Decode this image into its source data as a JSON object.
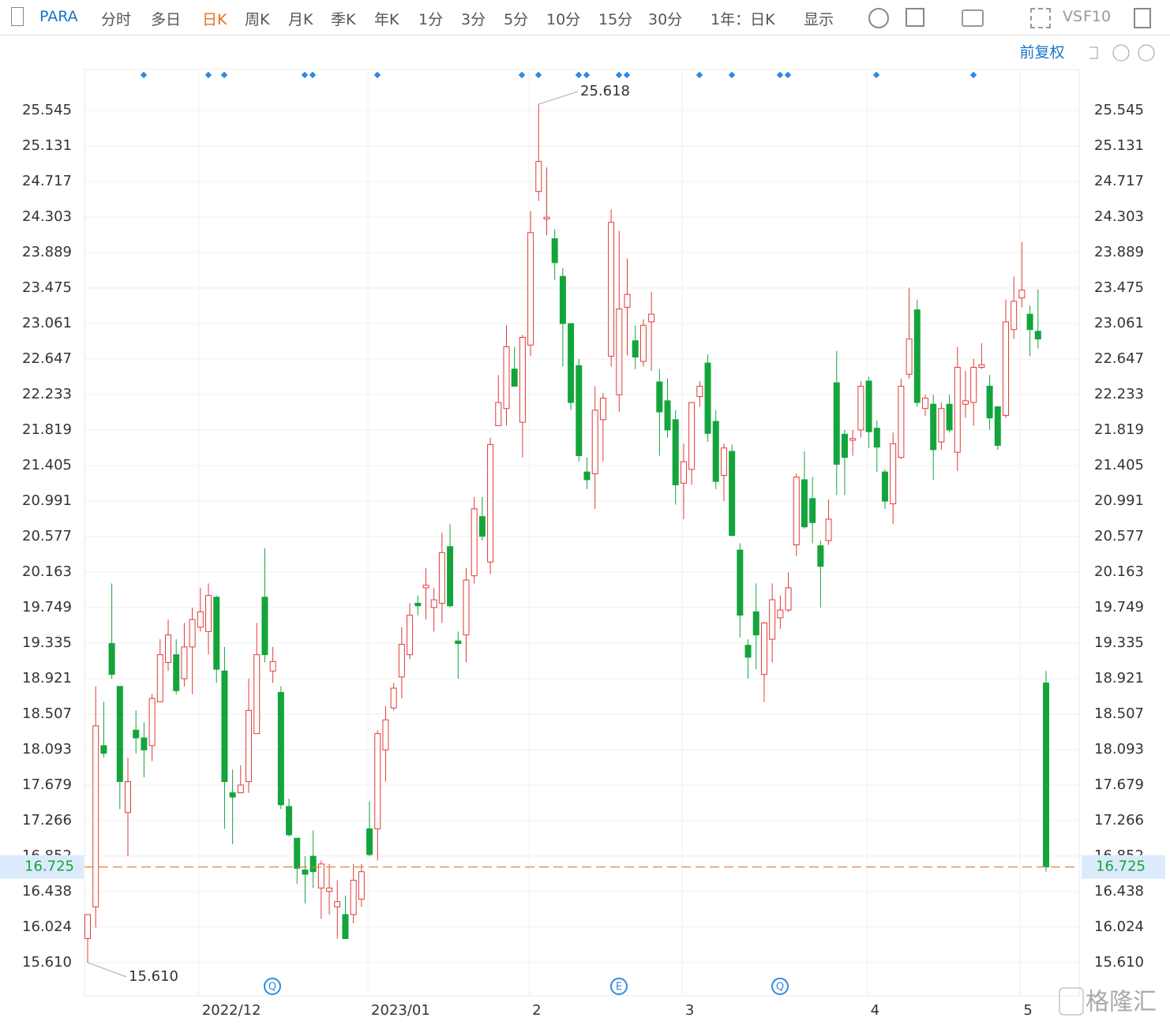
{
  "toolbar": {
    "symbol": "PARA",
    "periods": [
      "分时",
      "多日",
      "日K",
      "周K",
      "月K",
      "季K",
      "年K",
      "1分",
      "3分",
      "5分",
      "10分",
      "15分",
      "30分"
    ],
    "range": "1年：日K",
    "display": "显示",
    "vs": "VS",
    "f10": "F10",
    "adjust": "前复权"
  },
  "watermark": "格隆汇",
  "event_icons": [
    "Q",
    "E",
    "Q"
  ],
  "chart_data": {
    "type": "candlestick",
    "up_color": "#e23b35",
    "down_color": "#13a53c",
    "grid": true,
    "categories": [
      null,
      null,
      null,
      null,
      null,
      null,
      null,
      null,
      null,
      null,
      null,
      null,
      null,
      null,
      "2022/12",
      null,
      null,
      null,
      null,
      null,
      null,
      null,
      null,
      null,
      null,
      null,
      null,
      null,
      null,
      null,
      null,
      null,
      null,
      null,
      null,
      "2023/01",
      null,
      null,
      null,
      null,
      null,
      null,
      null,
      null,
      null,
      null,
      null,
      null,
      null,
      null,
      null,
      null,
      null,
      null,
      null,
      "2",
      null,
      null,
      null,
      null,
      null,
      null,
      null,
      null,
      null,
      null,
      null,
      null,
      null,
      null,
      null,
      null,
      null,
      null,
      "3",
      null,
      null,
      null,
      null,
      null,
      null,
      null,
      null,
      null,
      null,
      null,
      null,
      null,
      null,
      null,
      null,
      null,
      null,
      null,
      null,
      null,
      null,
      "4",
      null,
      null,
      null,
      null,
      null,
      null,
      null,
      null,
      null,
      null,
      null,
      null,
      null,
      null,
      null,
      null,
      null,
      null,
      "5",
      null,
      null,
      null
    ],
    "open": [
      15.89,
      16.26,
      18.14,
      19.33,
      18.83,
      17.36,
      18.32,
      18.23,
      18.14,
      18.65,
      19.11,
      19.2,
      18.92,
      19.29,
      19.52,
      19.47,
      19.87,
      19.01,
      17.59,
      17.59,
      17.72,
      18.28,
      19.87,
      19.01,
      18.76,
      17.43,
      17.06,
      16.69,
      16.85,
      16.48,
      16.44,
      16.26,
      16.17,
      16.17,
      16.35,
      17.17,
      17.17,
      18.09,
      18.58,
      18.94,
      19.2,
      19.8,
      19.98,
      19.75,
      19.8,
      20.46,
      19.36,
      19.43,
      20.12,
      20.81,
      20.28,
      21.87,
      22.07,
      22.53,
      21.91,
      22.81,
      24.6,
      24.28,
      24.05,
      23.61,
      23.06,
      22.57,
      21.33,
      21.31,
      21.94,
      22.68,
      22.23,
      23.25,
      22.86,
      22.62,
      23.08,
      22.38,
      22.16,
      21.94,
      21.2,
      21.36,
      22.21,
      22.6,
      21.92,
      21.29,
      21.57,
      20.42,
      19.31,
      19.7,
      18.97,
      19.38,
      19.63,
      19.72,
      20.48,
      21.24,
      21.02,
      20.47,
      20.53,
      22.37,
      21.77,
      21.7,
      21.82,
      22.39,
      21.84,
      21.33,
      20.96,
      21.5,
      22.47,
      23.22,
      22.07,
      22.12,
      21.68,
      22.12,
      21.56,
      22.12,
      22.14,
      22.55,
      22.33,
      22.09,
      21.99,
      22.99,
      23.36,
      23.17,
      22.97,
      18.87
    ],
    "close": [
      16.17,
      18.37,
      18.05,
      18.97,
      17.72,
      17.72,
      18.23,
      18.09,
      18.69,
      19.2,
      19.43,
      18.78,
      19.29,
      19.61,
      19.7,
      19.89,
      19.03,
      17.72,
      17.54,
      17.68,
      18.55,
      19.2,
      19.2,
      19.12,
      17.45,
      17.1,
      16.71,
      16.64,
      16.67,
      16.76,
      16.48,
      16.32,
      15.89,
      16.57,
      16.67,
      16.87,
      18.28,
      18.44,
      18.81,
      19.32,
      19.66,
      19.77,
      20.01,
      19.84,
      20.39,
      19.77,
      19.33,
      20.07,
      20.9,
      20.58,
      21.65,
      22.14,
      22.79,
      22.33,
      22.9,
      24.12,
      24.95,
      24.3,
      23.77,
      23.06,
      22.14,
      21.52,
      21.24,
      22.05,
      22.19,
      24.24,
      23.23,
      23.4,
      22.67,
      23.04,
      23.17,
      22.03,
      21.82,
      21.18,
      21.45,
      22.14,
      22.33,
      21.78,
      21.22,
      21.61,
      20.59,
      19.66,
      19.17,
      19.43,
      19.57,
      19.84,
      19.72,
      19.98,
      21.27,
      20.69,
      20.74,
      20.23,
      20.78,
      21.42,
      21.5,
      21.72,
      22.33,
      21.8,
      21.62,
      20.99,
      21.66,
      22.33,
      22.88,
      22.14,
      22.19,
      21.59,
      22.07,
      21.82,
      22.55,
      22.16,
      22.55,
      22.58,
      21.96,
      21.64,
      23.08,
      23.32,
      23.45,
      22.99,
      22.88,
      16.725
    ],
    "high": [
      16.17,
      18.83,
      18.65,
      20.03,
      18.83,
      18.0,
      18.55,
      18.41,
      18.74,
      19.38,
      19.61,
      19.38,
      19.57,
      19.75,
      19.98,
      20.03,
      19.89,
      19.29,
      17.86,
      17.91,
      18.92,
      19.57,
      20.44,
      19.29,
      18.83,
      17.52,
      17.06,
      16.85,
      17.15,
      16.8,
      16.76,
      16.57,
      16.39,
      16.76,
      16.76,
      17.49,
      18.32,
      18.6,
      18.87,
      19.52,
      19.8,
      19.89,
      20.21,
      19.98,
      20.62,
      20.72,
      19.47,
      20.21,
      21.04,
      21.04,
      21.73,
      22.46,
      23.04,
      22.79,
      22.93,
      24.37,
      25.618,
      24.88,
      24.16,
      23.71,
      23.06,
      22.65,
      21.5,
      22.33,
      22.25,
      24.39,
      24.14,
      23.82,
      23.04,
      23.11,
      23.43,
      22.53,
      22.42,
      22.05,
      21.66,
      22.14,
      22.39,
      22.7,
      22.05,
      21.66,
      21.65,
      20.5,
      19.38,
      20.03,
      19.58,
      20.03,
      19.89,
      20.16,
      21.31,
      21.57,
      21.27,
      20.53,
      21.01,
      22.74,
      21.82,
      21.82,
      22.39,
      22.44,
      21.93,
      21.36,
      21.79,
      22.42,
      23.48,
      23.34,
      22.23,
      22.23,
      22.14,
      22.23,
      22.79,
      22.51,
      22.65,
      22.83,
      22.46,
      22.1,
      23.34,
      23.61,
      24.01,
      23.27,
      23.46,
      19.01
    ],
    "low": [
      15.61,
      16.02,
      18.0,
      18.92,
      17.4,
      16.85,
      18.05,
      17.77,
      17.96,
      18.65,
      19.01,
      18.74,
      18.83,
      18.74,
      19.47,
      19.2,
      18.87,
      17.17,
      16.99,
      17.59,
      17.59,
      18.28,
      19.11,
      18.87,
      17.4,
      17.08,
      16.53,
      16.3,
      16.48,
      16.12,
      16.17,
      15.89,
      15.89,
      16.07,
      16.26,
      16.85,
      16.8,
      17.72,
      18.55,
      18.69,
      19.15,
      19.66,
      19.61,
      19.47,
      19.57,
      19.75,
      18.92,
      19.11,
      20.03,
      20.53,
      20.14,
      21.87,
      21.87,
      22.33,
      21.5,
      22.68,
      24.49,
      24.09,
      23.57,
      22.56,
      22.05,
      21.45,
      21.13,
      20.9,
      21.45,
      22.56,
      22.03,
      22.69,
      22.53,
      22.56,
      22.51,
      21.52,
      21.73,
      20.95,
      20.78,
      21.18,
      22.09,
      21.68,
      21.13,
      20.99,
      20.58,
      19.4,
      18.92,
      19.03,
      18.65,
      19.11,
      19.5,
      19.7,
      20.35,
      20.67,
      20.5,
      19.75,
      20.48,
      21.06,
      21.06,
      21.52,
      21.73,
      21.61,
      21.33,
      20.9,
      20.72,
      21.48,
      22.42,
      22.09,
      21.98,
      21.24,
      21.59,
      21.79,
      21.34,
      21.96,
      21.87,
      22.53,
      21.82,
      21.59,
      21.96,
      22.88,
      23.25,
      22.68,
      22.77,
      16.67
    ],
    "ylim": [
      15.223,
      26.023
    ],
    "yticks": [
      {
        "value": 15.61,
        "label": "15.610"
      },
      16.024,
      16.438,
      16.852,
      17.266,
      17.679,
      18.093,
      18.507,
      18.921,
      19.335,
      19.749,
      20.163,
      20.577,
      20.991,
      21.405,
      21.819,
      22.233,
      22.647,
      23.061,
      23.475,
      23.889,
      24.303,
      24.717,
      25.131,
      25.545
    ],
    "max_annotation": 25.618,
    "min_annotation": {
      "value": 15.61,
      "label": "15.610"
    },
    "current_price": 16.725,
    "current_color": "#e8823a"
  }
}
